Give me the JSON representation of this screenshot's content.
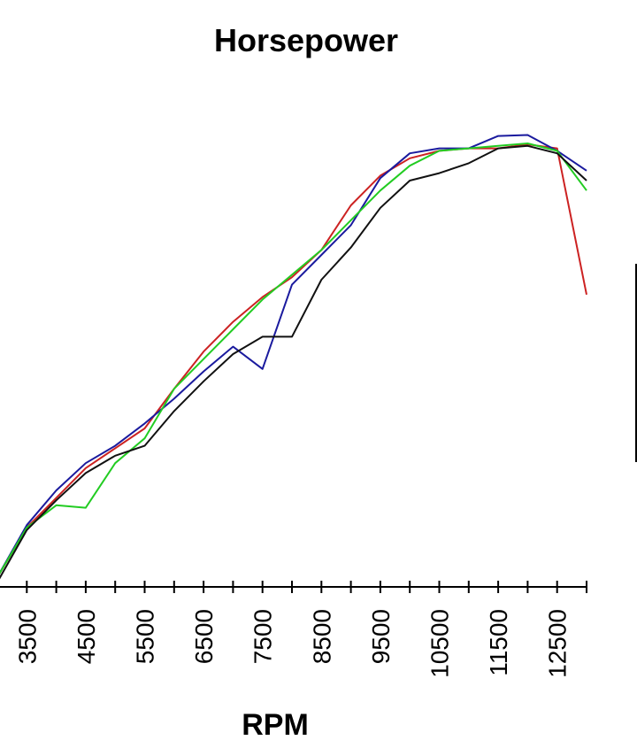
{
  "chart_data": {
    "type": "line",
    "title": "Horsepower",
    "xlabel": "RPM",
    "ylabel": "",
    "xlim": [
      3000,
      13000
    ],
    "xticks": [
      3000,
      3500,
      4000,
      4500,
      5000,
      5500,
      6000,
      6500,
      7000,
      7500,
      8000,
      8500,
      9000,
      9500,
      10000,
      10500,
      11000,
      11500,
      12000,
      12500,
      13000
    ],
    "xticklabels": [
      "3500",
      "4500",
      "5500",
      "6500",
      "7500",
      "8500",
      "9500",
      "10500",
      "11500",
      "12500"
    ],
    "labeled_ticks": [
      3500,
      4500,
      5500,
      6500,
      7500,
      8500,
      9500,
      10500,
      11500,
      12500
    ],
    "ylim": [
      0,
      100
    ],
    "grid": false,
    "x": [
      3000,
      3500,
      4000,
      4500,
      5000,
      5500,
      6000,
      6500,
      7000,
      7500,
      8000,
      8500,
      9000,
      9500,
      10000,
      10500,
      11000,
      11500,
      12000,
      12500,
      13000
    ],
    "series": [
      {
        "color": "#cc2222",
        "values": [
          5,
          15,
          21,
          27,
          31,
          35,
          43,
          50.5,
          56.5,
          61.5,
          65.5,
          71,
          80,
          86,
          89.5,
          91,
          91.5,
          91.5,
          92.3,
          91.5,
          62
        ]
      },
      {
        "color": "#1a1a9e",
        "values": [
          5,
          15.5,
          22.5,
          28,
          31.5,
          36,
          41,
          46.5,
          51.5,
          47,
          64,
          70,
          76,
          85.5,
          90.5,
          91.5,
          91.5,
          94,
          94.2,
          91,
          87
        ]
      },
      {
        "color": "#22cc22",
        "values": [
          5,
          15,
          19.5,
          19,
          28,
          33,
          43,
          49,
          55,
          61,
          66,
          71,
          77,
          83,
          88,
          91,
          91.5,
          92,
          92.5,
          91,
          83
        ]
      },
      {
        "color": "#111111",
        "values": [
          4,
          14.5,
          20.5,
          26,
          29.5,
          31.5,
          38.5,
          44.5,
          50,
          53.5,
          53.5,
          65,
          71.5,
          79.5,
          85,
          86.5,
          88.5,
          91.5,
          92,
          90.5,
          85
        ]
      }
    ]
  }
}
